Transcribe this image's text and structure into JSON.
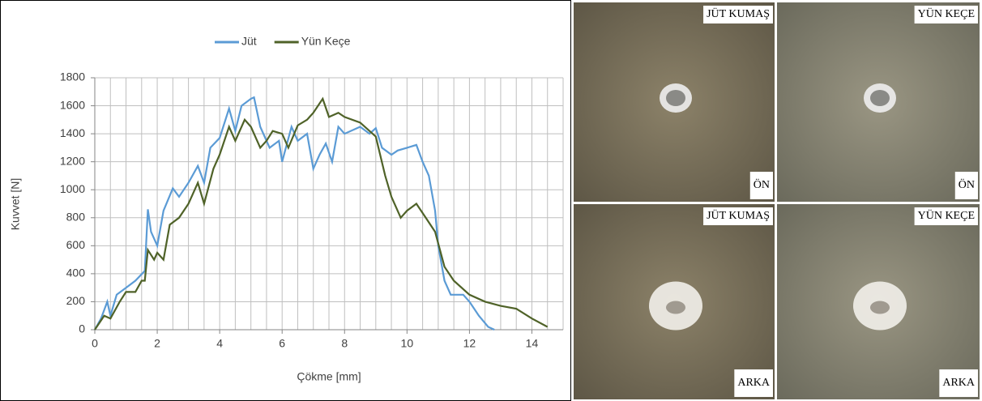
{
  "chart_data": {
    "type": "line",
    "y_label": "Kuvvet [N]",
    "x_label": "Çökme [mm]",
    "xlim": [
      0,
      15
    ],
    "xticks": [
      0,
      2,
      4,
      6,
      8,
      10,
      12,
      14
    ],
    "x_minor_grid": [
      0,
      0.5,
      1,
      1.5,
      2,
      2.5,
      3,
      3.5,
      4,
      4.5,
      5,
      5.5,
      6,
      6.5,
      7,
      7.5,
      8,
      8.5,
      9,
      9.5,
      10,
      10.5,
      11,
      11.5,
      12,
      12.5,
      13,
      13.5,
      14,
      14.5,
      15
    ],
    "ylim": [
      0,
      1800
    ],
    "yticks": [
      0,
      200,
      400,
      600,
      800,
      1000,
      1200,
      1400,
      1600,
      1800
    ],
    "grid": true,
    "legend": "top",
    "series": [
      {
        "name": "Jüt",
        "color": "#5b9bd5",
        "x": [
          0,
          0.2,
          0.4,
          0.5,
          0.7,
          1.0,
          1.3,
          1.6,
          1.7,
          1.8,
          2.0,
          2.2,
          2.5,
          2.7,
          3.0,
          3.3,
          3.5,
          3.7,
          4.0,
          4.3,
          4.5,
          4.7,
          5.0,
          5.1,
          5.3,
          5.6,
          5.9,
          6.0,
          6.3,
          6.5,
          6.8,
          7.0,
          7.2,
          7.4,
          7.6,
          7.8,
          8.0,
          8.5,
          8.8,
          9.0,
          9.2,
          9.5,
          9.7,
          10.0,
          10.3,
          10.5,
          10.7,
          10.9,
          11.0,
          11.2,
          11.4,
          11.8,
          12.0,
          12.3,
          12.6,
          12.8
        ],
        "values": [
          0,
          80,
          200,
          100,
          250,
          300,
          350,
          420,
          860,
          700,
          600,
          850,
          1010,
          950,
          1050,
          1170,
          1050,
          1300,
          1370,
          1580,
          1420,
          1600,
          1650,
          1660,
          1450,
          1300,
          1350,
          1200,
          1450,
          1350,
          1400,
          1150,
          1250,
          1330,
          1200,
          1450,
          1400,
          1450,
          1400,
          1440,
          1300,
          1250,
          1280,
          1300,
          1320,
          1200,
          1100,
          850,
          600,
          350,
          250,
          250,
          200,
          100,
          20,
          0
        ]
      },
      {
        "name": "Yün Keçe",
        "color": "#4f6228",
        "x": [
          0,
          0.3,
          0.5,
          0.8,
          1.0,
          1.3,
          1.5,
          1.6,
          1.7,
          1.9,
          2.0,
          2.2,
          2.4,
          2.7,
          3.0,
          3.3,
          3.5,
          3.8,
          4.0,
          4.3,
          4.5,
          4.8,
          5.0,
          5.3,
          5.5,
          5.7,
          6.0,
          6.2,
          6.5,
          6.8,
          7.0,
          7.3,
          7.5,
          7.8,
          8.0,
          8.5,
          9.0,
          9.3,
          9.5,
          9.8,
          10.0,
          10.3,
          10.6,
          10.9,
          11.2,
          11.5,
          12.0,
          12.5,
          13.0,
          13.5,
          14.0,
          14.5
        ],
        "values": [
          0,
          100,
          80,
          200,
          270,
          270,
          350,
          350,
          570,
          500,
          550,
          500,
          750,
          800,
          900,
          1050,
          900,
          1150,
          1250,
          1450,
          1350,
          1500,
          1450,
          1300,
          1350,
          1420,
          1400,
          1300,
          1460,
          1500,
          1550,
          1650,
          1520,
          1550,
          1520,
          1480,
          1380,
          1100,
          950,
          800,
          850,
          900,
          800,
          700,
          450,
          350,
          250,
          200,
          170,
          150,
          80,
          20
        ]
      }
    ]
  },
  "panels": [
    {
      "top": "JÜT KUMAŞ",
      "bottom": "ÖN"
    },
    {
      "top": "YÜN KEÇE",
      "bottom": "ÖN"
    },
    {
      "top": "JÜT KUMAŞ",
      "bottom": "ARKA"
    },
    {
      "top": "YÜN KEÇE",
      "bottom": "ARKA"
    }
  ]
}
